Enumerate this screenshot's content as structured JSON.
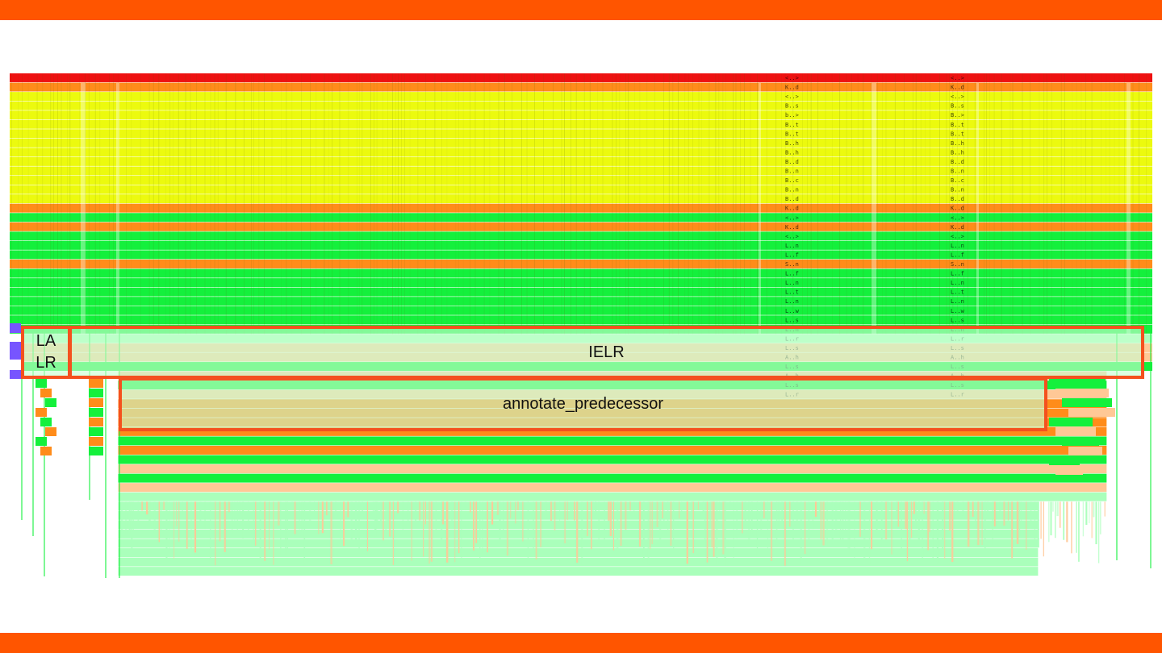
{
  "slide": {
    "accent_color": "#ff5500",
    "background": "#ffffff"
  },
  "callouts": {
    "la_lr": [
      "LA",
      "LR"
    ],
    "ielr": "IELR",
    "annotate_predecessor": "annotate_predecessor",
    "border_color": "#f4511e",
    "fill_color": "#c8ffd2"
  },
  "chart_data": {
    "type": "flame-graph",
    "title": "",
    "xlabel": "",
    "ylabel": "",
    "palette": {
      "red": "#ee1111",
      "orange": "#ff8c1a",
      "yellow": "#ecfa0e",
      "green": "#14f03c",
      "peach": "#ffc896",
      "pale_green": "#aaffbb",
      "violet": "#7755ff"
    },
    "frame_labels_column_a": [
      "<..>",
      "K..d",
      "<..>",
      "B..s",
      "b..>",
      "B..t",
      "B..t",
      "B..h",
      "B..h",
      "B..d",
      "B..n",
      "B..c",
      "B..n",
      "B..d",
      "K..d",
      "<..>",
      "K..d",
      "<..>",
      "L..n",
      "L..f",
      "S..n",
      "L..f",
      "L..n",
      "L..t",
      "L..n",
      "L..w",
      "L..s",
      "L..n",
      "L..r",
      "L..s",
      "A..h",
      "L..s",
      "A..h",
      "L..s",
      "L..r"
    ],
    "frame_labels_column_b": [
      "<..>",
      "K..d",
      "<..>",
      "B..s",
      "B..>",
      "B..t",
      "B..t",
      "B..h",
      "B..h",
      "B..d",
      "B..n",
      "B..c",
      "B..n",
      "B..d",
      "K..d",
      "<..>",
      "K..d",
      "<..>",
      "L..n",
      "L..f",
      "S..n",
      "L..f",
      "L..n",
      "L..t",
      "L..n",
      "L..w",
      "L..s",
      "L..n",
      "L..r",
      "L..s",
      "A..h",
      "L..s",
      "A..h",
      "L..s",
      "L..r"
    ],
    "stack_levels": [
      {
        "depth": 0,
        "color": "red",
        "span": [
          0.0,
          1.0
        ]
      },
      {
        "depth": 1,
        "color": "orange",
        "span": [
          0.0,
          1.0
        ]
      },
      {
        "depth": 2,
        "color": "yellow",
        "span": [
          0.0,
          1.0
        ]
      },
      {
        "depth": 3,
        "color": "yellow",
        "span": [
          0.0,
          1.0
        ]
      },
      {
        "depth": 4,
        "color": "yellow",
        "span": [
          0.0,
          1.0
        ]
      },
      {
        "depth": 5,
        "color": "yellow",
        "span": [
          0.0,
          1.0
        ]
      },
      {
        "depth": 6,
        "color": "yellow",
        "span": [
          0.0,
          1.0
        ]
      },
      {
        "depth": 7,
        "color": "yellow",
        "span": [
          0.0,
          1.0
        ]
      },
      {
        "depth": 8,
        "color": "yellow",
        "span": [
          0.0,
          1.0
        ]
      },
      {
        "depth": 9,
        "color": "yellow",
        "span": [
          0.0,
          1.0
        ]
      },
      {
        "depth": 10,
        "color": "yellow",
        "span": [
          0.0,
          1.0
        ]
      },
      {
        "depth": 11,
        "color": "yellow",
        "span": [
          0.0,
          1.0
        ]
      },
      {
        "depth": 12,
        "color": "yellow",
        "span": [
          0.0,
          1.0
        ]
      },
      {
        "depth": 13,
        "color": "yellow",
        "span": [
          0.0,
          1.0
        ]
      },
      {
        "depth": 14,
        "color": "orange",
        "span": [
          0.0,
          1.0
        ]
      },
      {
        "depth": 15,
        "color": "green",
        "span": [
          0.0,
          1.0
        ]
      },
      {
        "depth": 16,
        "color": "orange",
        "span": [
          0.0,
          1.0
        ]
      },
      {
        "depth": 17,
        "color": "green",
        "span": [
          0.0,
          1.0
        ]
      },
      {
        "depth": 18,
        "color": "green",
        "span": [
          0.0,
          1.0
        ]
      },
      {
        "depth": 19,
        "color": "green",
        "span": [
          0.0,
          1.0
        ]
      },
      {
        "depth": 20,
        "color": "orange",
        "span": [
          0.0,
          1.0
        ]
      },
      {
        "depth": 21,
        "color": "green",
        "span": [
          0.0,
          1.0
        ]
      },
      {
        "depth": 22,
        "color": "green",
        "span": [
          0.0,
          1.0
        ]
      },
      {
        "depth": 23,
        "color": "green",
        "span": [
          0.0,
          1.0
        ]
      },
      {
        "depth": 24,
        "color": "green",
        "span": [
          0.0,
          1.0
        ]
      },
      {
        "depth": 25,
        "color": "green",
        "span": [
          0.0,
          1.0
        ]
      },
      {
        "depth": 26,
        "color": "green",
        "span": [
          0.0,
          1.0
        ]
      },
      {
        "depth": 27,
        "color": "green",
        "span": [
          0.0,
          1.0
        ]
      },
      {
        "depth": 28,
        "color": "pale_green",
        "span": [
          0.011,
          1.0
        ]
      },
      {
        "depth": 29,
        "color": "peach",
        "span": [
          0.011,
          1.0
        ]
      },
      {
        "depth": 30,
        "color": "peach",
        "span": [
          0.011,
          1.0
        ]
      },
      {
        "depth": 31,
        "color": "green",
        "span": [
          0.011,
          1.0
        ]
      },
      {
        "depth": 32,
        "color": "peach",
        "span": [
          0.095,
          0.96
        ]
      },
      {
        "depth": 33,
        "color": "green",
        "span": [
          0.095,
          0.96
        ]
      },
      {
        "depth": 34,
        "color": "peach",
        "span": [
          0.095,
          0.96
        ]
      },
      {
        "depth": 35,
        "color": "orange",
        "span": [
          0.095,
          0.96
        ]
      },
      {
        "depth": 36,
        "color": "orange",
        "span": [
          0.095,
          0.96
        ]
      },
      {
        "depth": 37,
        "color": "orange",
        "span": [
          0.095,
          0.96
        ]
      },
      {
        "depth": 38,
        "color": "orange",
        "span": [
          0.095,
          0.96
        ]
      },
      {
        "depth": 39,
        "color": "green",
        "span": [
          0.095,
          0.96
        ]
      },
      {
        "depth": 40,
        "color": "orange",
        "span": [
          0.095,
          0.96
        ]
      },
      {
        "depth": 41,
        "color": "green",
        "span": [
          0.095,
          0.96
        ]
      },
      {
        "depth": 42,
        "color": "peach",
        "span": [
          0.095,
          0.96
        ]
      },
      {
        "depth": 43,
        "color": "green",
        "span": [
          0.095,
          0.96
        ]
      },
      {
        "depth": 44,
        "color": "peach",
        "span": [
          0.095,
          0.96
        ]
      },
      {
        "depth": 45,
        "color": "pale_green",
        "span": [
          0.095,
          0.96
        ]
      },
      {
        "depth": 46,
        "color": "pale_green",
        "span": [
          0.095,
          0.9
        ]
      },
      {
        "depth": 47,
        "color": "pale_green",
        "span": [
          0.095,
          0.9
        ]
      },
      {
        "depth": 48,
        "color": "pale_green",
        "span": [
          0.095,
          0.9
        ]
      },
      {
        "depth": 49,
        "color": "pale_green",
        "span": [
          0.095,
          0.9
        ]
      },
      {
        "depth": 50,
        "color": "pale_green",
        "span": [
          0.095,
          0.9
        ]
      },
      {
        "depth": 51,
        "color": "pale_green",
        "span": [
          0.095,
          0.9
        ]
      },
      {
        "depth": 52,
        "color": "pale_green",
        "span": [
          0.095,
          0.9
        ]
      },
      {
        "depth": 53,
        "color": "pale_green",
        "span": [
          0.095,
          0.9
        ]
      }
    ]
  }
}
